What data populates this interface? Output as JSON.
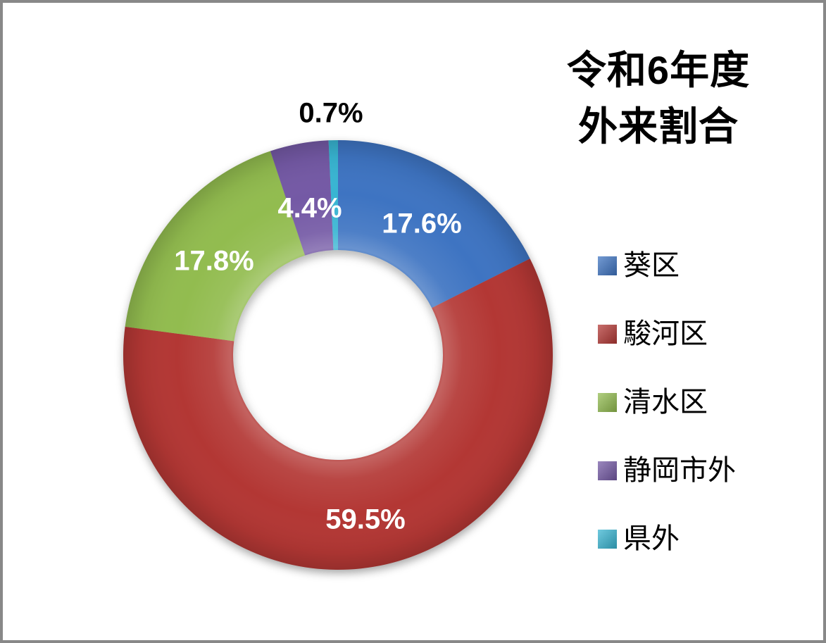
{
  "window": {
    "background_color": "#FFFFFF",
    "border_color": "#888888"
  },
  "chart_data": {
    "type": "pie",
    "subtype": "donut",
    "title": "令和6年度 外来割合",
    "title_lines": [
      "令和6年度",
      "外来割合"
    ],
    "categories": [
      "葵区",
      "駿河区",
      "清水区",
      "静岡市外",
      "県外"
    ],
    "values": [
      17.6,
      59.5,
      17.8,
      4.4,
      0.7
    ],
    "data_labels": [
      "17.6%",
      "59.5%",
      "17.8%",
      "4.4%",
      "0.7%"
    ],
    "data_label_colors": [
      "#FFFFFF",
      "#FFFFFF",
      "#FFFFFF",
      "#FFFFFF",
      "#000000"
    ],
    "colors": [
      "#3E74C2",
      "#B33734",
      "#92BC4F",
      "#7459A5",
      "#38B5D2"
    ],
    "start_angle_deg": 0,
    "direction": "clockwise",
    "donut_hole_ratio": 0.49,
    "legend_position": "right",
    "units": "percent",
    "grid": false
  }
}
